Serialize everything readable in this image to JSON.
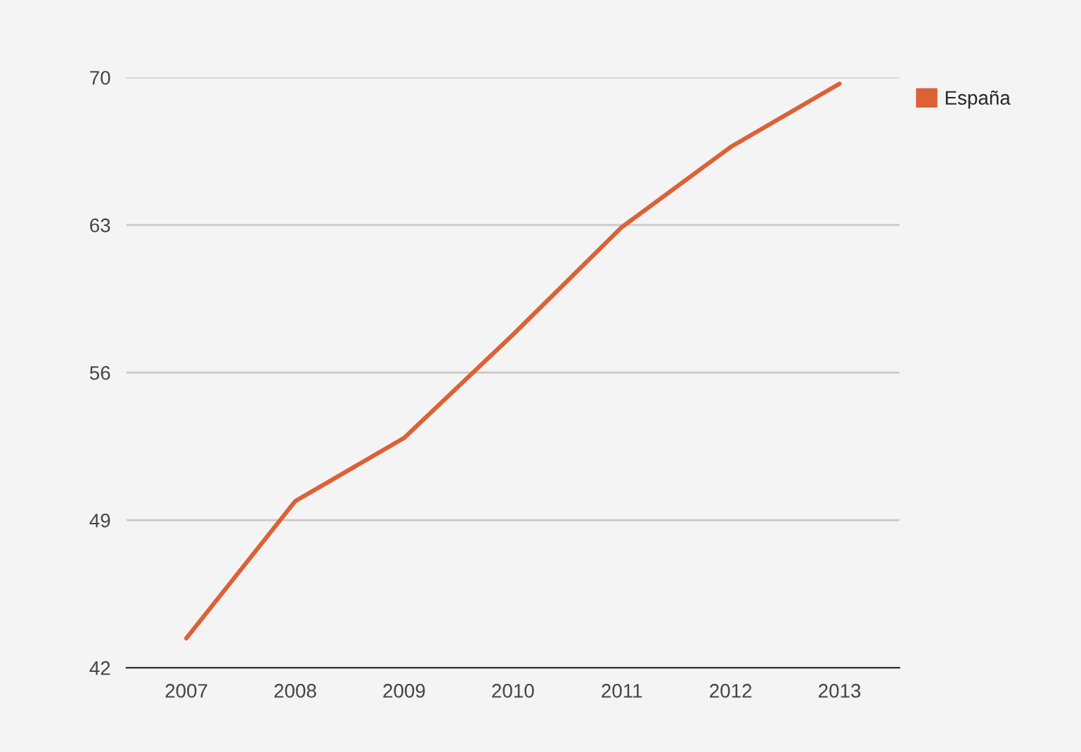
{
  "chart_data": {
    "type": "line",
    "categories": [
      "2007",
      "2008",
      "2009",
      "2010",
      "2011",
      "2012",
      "2013"
    ],
    "series": [
      {
        "name": "España",
        "color": "#dc6236",
        "values": [
          43.4,
          49.9,
          52.9,
          57.8,
          62.9,
          66.7,
          69.7
        ]
      }
    ],
    "ylim": [
      42,
      70
    ],
    "yticks": [
      42,
      49,
      56,
      63,
      70
    ],
    "grid": "y",
    "legend": "top right",
    "marker": "none",
    "line_style": "solid"
  }
}
